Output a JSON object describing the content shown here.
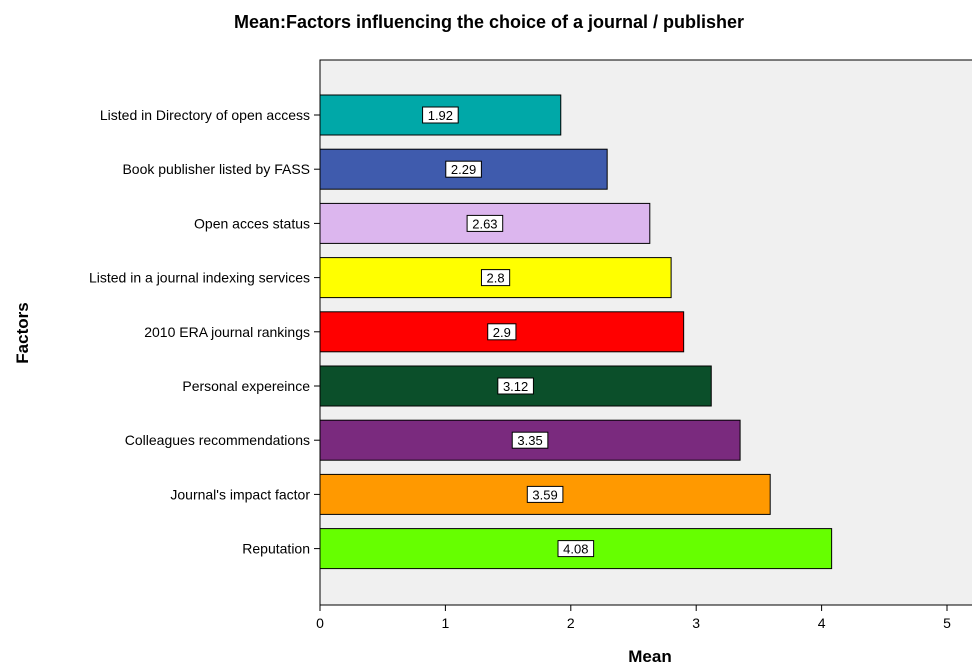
{
  "chart_data": {
    "type": "bar",
    "orientation": "horizontal",
    "title": "Mean:Factors influencing the choice of a journal / publisher",
    "xlabel": "Mean",
    "ylabel": "Factors",
    "xlim": [
      0,
      5
    ],
    "xticks": [
      "0",
      "1",
      "2",
      "3",
      "4",
      "5"
    ],
    "grid": false,
    "plot_background": "#f0f0f0",
    "categories": [
      "Listed in Directory of open access",
      "Book publisher listed by FASS",
      "Open acces status",
      "Listed in a journal indexing services",
      "2010 ERA journal rankings",
      "Personal expereince",
      "Colleagues recommendations",
      "Journal's impact factor",
      "Reputation"
    ],
    "values": [
      1.92,
      2.29,
      2.63,
      2.8,
      2.9,
      3.12,
      3.35,
      3.59,
      4.08
    ],
    "value_labels": [
      "1.92",
      "2.29",
      "2.63",
      "2.8",
      "2.9",
      "3.12",
      "3.35",
      "3.59",
      "4.08"
    ],
    "colors": [
      "#00a8a8",
      "#3f5bad",
      "#dcb6ee",
      "#ffff00",
      "#ff0000",
      "#0b4f2a",
      "#7a2a7e",
      "#ff9900",
      "#66ff00"
    ]
  }
}
